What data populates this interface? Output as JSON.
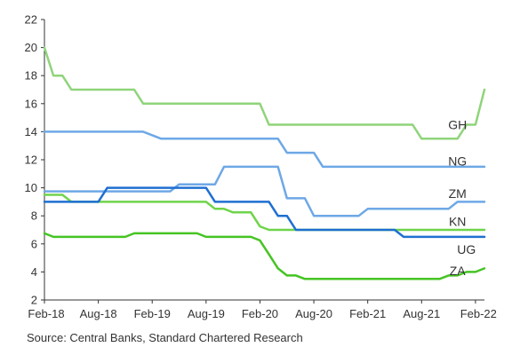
{
  "chart_data": {
    "type": "line",
    "title": "",
    "xlabel": "",
    "ylabel": "",
    "ylim": [
      2,
      22
    ],
    "y_ticks": [
      2,
      4,
      6,
      8,
      10,
      12,
      14,
      16,
      18,
      20,
      22
    ],
    "x_range": [
      "2018-02",
      "2022-03"
    ],
    "x_ticks": [
      {
        "date": "2018-02",
        "label": "Feb-18"
      },
      {
        "date": "2018-08",
        "label": "Aug-18"
      },
      {
        "date": "2019-02",
        "label": "Feb-19"
      },
      {
        "date": "2019-08",
        "label": "Aug-19"
      },
      {
        "date": "2020-02",
        "label": "Feb-20"
      },
      {
        "date": "2020-08",
        "label": "Aug-20"
      },
      {
        "date": "2021-02",
        "label": "Feb-21"
      },
      {
        "date": "2021-08",
        "label": "Aug-21"
      },
      {
        "date": "2022-02",
        "label": "Feb-22"
      }
    ],
    "grid": false,
    "series": [
      {
        "name": "GH",
        "color": "#8fd47a",
        "points": [
          [
            "2018-02",
            20
          ],
          [
            "2018-03",
            18
          ],
          [
            "2018-04",
            18
          ],
          [
            "2018-05",
            17
          ],
          [
            "2018-06",
            17
          ],
          [
            "2018-12",
            17
          ],
          [
            "2019-01",
            16
          ],
          [
            "2019-02",
            16
          ],
          [
            "2020-01",
            16
          ],
          [
            "2020-02",
            16
          ],
          [
            "2020-03",
            14.5
          ],
          [
            "2021-07",
            14.5
          ],
          [
            "2021-08",
            13.5
          ],
          [
            "2021-12",
            13.5
          ],
          [
            "2022-01",
            14.5
          ],
          [
            "2022-02",
            14.5
          ],
          [
            "2022-03",
            17
          ]
        ]
      },
      {
        "name": "NG",
        "color": "#6ea8e6",
        "points": [
          [
            "2018-02",
            14
          ],
          [
            "2019-01",
            14
          ],
          [
            "2019-03",
            13.5
          ],
          [
            "2020-04",
            13.5
          ],
          [
            "2020-05",
            12.5
          ],
          [
            "2020-08",
            12.5
          ],
          [
            "2020-09",
            11.5
          ],
          [
            "2022-03",
            11.5
          ]
        ]
      },
      {
        "name": "ZM",
        "color": "#6ea8e6",
        "points": [
          [
            "2018-02",
            9.75
          ],
          [
            "2019-04",
            9.75
          ],
          [
            "2019-05",
            10.25
          ],
          [
            "2019-09",
            10.25
          ],
          [
            "2019-10",
            11.5
          ],
          [
            "2020-02",
            11.5
          ],
          [
            "2020-04",
            11.5
          ],
          [
            "2020-05",
            9.25
          ],
          [
            "2020-07",
            9.25
          ],
          [
            "2020-08",
            8
          ],
          [
            "2021-01",
            8
          ],
          [
            "2021-02",
            8.5
          ],
          [
            "2021-11",
            8.5
          ],
          [
            "2021-12",
            9
          ],
          [
            "2022-03",
            9
          ]
        ]
      },
      {
        "name": "KN",
        "color": "#6fd44a",
        "points": [
          [
            "2018-02",
            9.5
          ],
          [
            "2018-04",
            9.5
          ],
          [
            "2018-05",
            9
          ],
          [
            "2019-08",
            9
          ],
          [
            "2019-09",
            8.5
          ],
          [
            "2019-10",
            8.5
          ],
          [
            "2019-11",
            8.25
          ],
          [
            "2020-01",
            8.25
          ],
          [
            "2020-02",
            7.25
          ],
          [
            "2020-03",
            7
          ],
          [
            "2021-06",
            7
          ],
          [
            "2021-07",
            7
          ],
          [
            "2022-03",
            7
          ]
        ]
      },
      {
        "name": "UG",
        "color": "#1f6fd1",
        "points": [
          [
            "2018-02",
            9
          ],
          [
            "2018-08",
            9
          ],
          [
            "2018-09",
            10
          ],
          [
            "2019-08",
            10
          ],
          [
            "2019-09",
            9
          ],
          [
            "2020-03",
            9
          ],
          [
            "2020-04",
            8
          ],
          [
            "2020-05",
            8
          ],
          [
            "2020-06",
            7
          ],
          [
            "2021-05",
            7
          ],
          [
            "2021-06",
            6.5
          ],
          [
            "2022-03",
            6.5
          ]
        ]
      },
      {
        "name": "ZA",
        "color": "#45c423",
        "points": [
          [
            "2018-02",
            6.75
          ],
          [
            "2018-03",
            6.5
          ],
          [
            "2018-11",
            6.5
          ],
          [
            "2018-12",
            6.75
          ],
          [
            "2019-07",
            6.75
          ],
          [
            "2019-08",
            6.5
          ],
          [
            "2020-01",
            6.5
          ],
          [
            "2020-02",
            6.25
          ],
          [
            "2020-03",
            5.25
          ],
          [
            "2020-04",
            4.25
          ],
          [
            "2020-05",
            3.75
          ],
          [
            "2020-06",
            3.75
          ],
          [
            "2020-07",
            3.5
          ],
          [
            "2021-10",
            3.5
          ],
          [
            "2021-11",
            3.75
          ],
          [
            "2021-12",
            3.75
          ],
          [
            "2022-01",
            4
          ],
          [
            "2022-02",
            4
          ],
          [
            "2022-03",
            4.25
          ]
        ]
      }
    ],
    "series_labels": [
      {
        "name": "GH",
        "text": "GH",
        "date": "2021-12",
        "value": 14.5
      },
      {
        "name": "NG",
        "text": "NG",
        "date": "2021-12",
        "value": 11.9
      },
      {
        "name": "ZM",
        "text": "ZM",
        "date": "2021-12",
        "value": 9.6
      },
      {
        "name": "KN",
        "text": "KN",
        "date": "2021-12",
        "value": 7.6
      },
      {
        "name": "UG",
        "text": "UG",
        "date": "2022-01",
        "value": 5.6
      },
      {
        "name": "ZA",
        "text": "ZA",
        "date": "2021-12",
        "value": 4.1
      }
    ]
  },
  "source": "Source: Central Banks, Standard Chartered Research",
  "colors": {
    "axis": "#333333",
    "text": "#333333"
  }
}
